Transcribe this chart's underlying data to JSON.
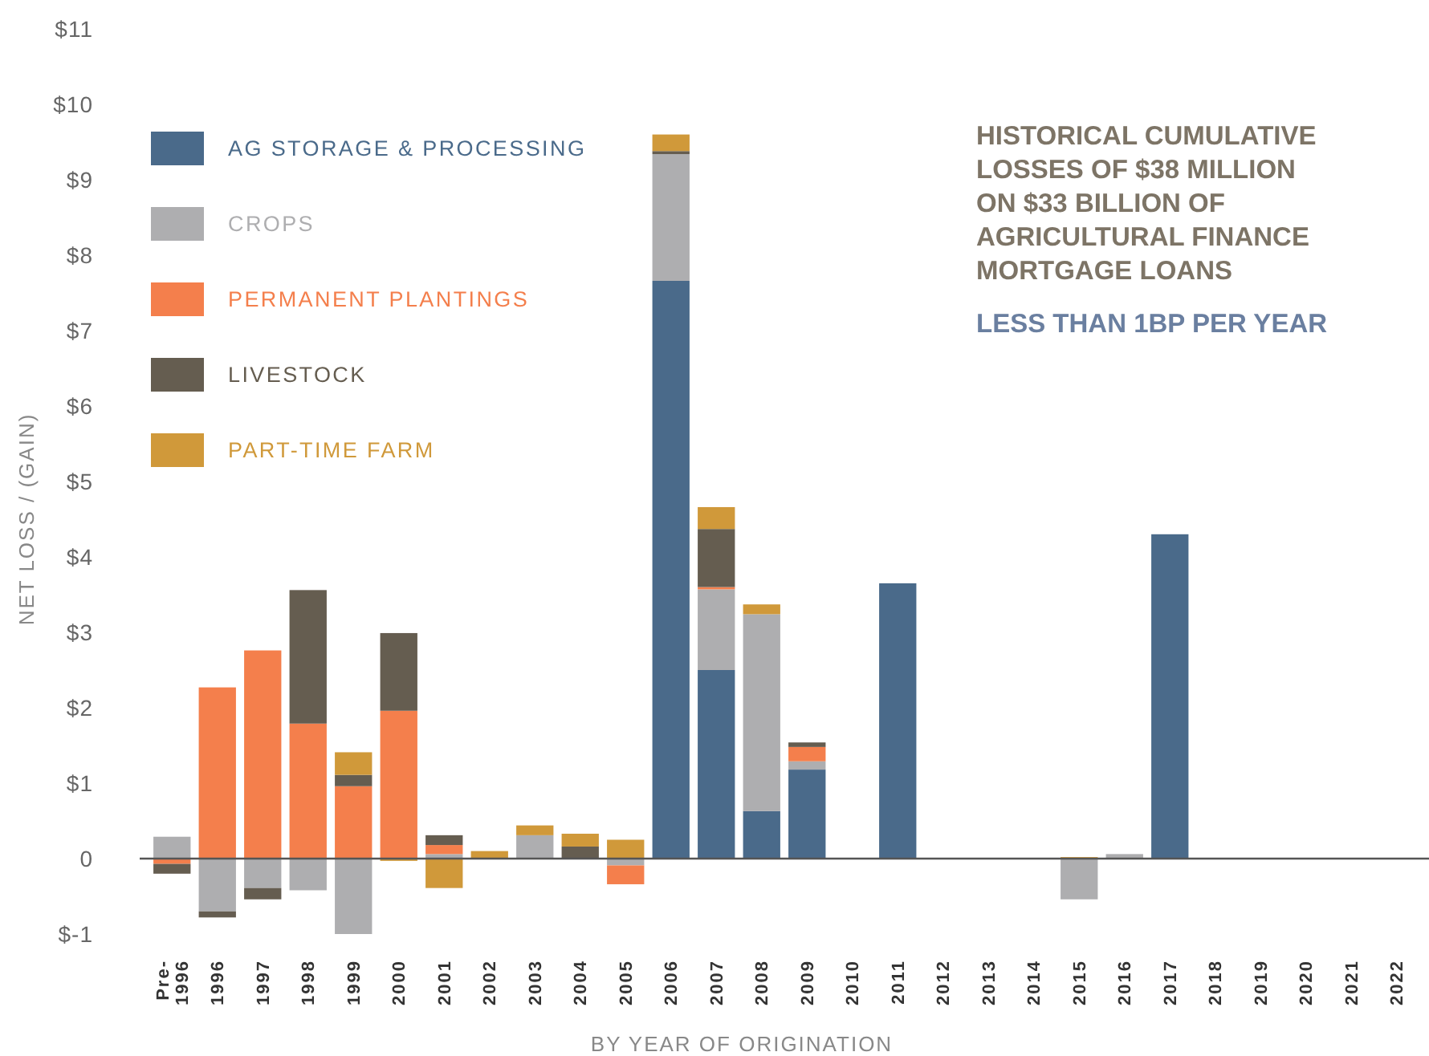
{
  "chart_data": {
    "type": "bar",
    "stacked": true,
    "legend": "top left",
    "xlabel": "BY YEAR OF ORIGINATION",
    "ylabel": "NET LOSS / (GAIN)",
    "annotations": [
      "HISTORICAL CUMULATIVE\nLOSSES OF $38 MILLION\nON $33 BILLION OF\nAGRICULTURAL FINANCE\nMORTGAGE LOANS",
      "LESS THAN 1BP PER YEAR"
    ],
    "categories": [
      "Pre-\n1996",
      "1996",
      "1997",
      "1998",
      "1999",
      "2000",
      "2001",
      "2002",
      "2003",
      "2004",
      "2005",
      "2006",
      "2007",
      "2008",
      "2009",
      "2010",
      "2011",
      "2012",
      "2013",
      "2014",
      "2015",
      "2016",
      "2017",
      "2018",
      "2019",
      "2020",
      "2021",
      "2022"
    ],
    "ylim": [
      -1,
      11
    ],
    "yticks": [
      {
        "value": -1,
        "label": "$-1"
      },
      0,
      {
        "value": 1,
        "label": "$1"
      },
      {
        "value": 2,
        "label": "$2"
      },
      {
        "value": 3,
        "label": "$3"
      },
      {
        "value": 4,
        "label": "$4"
      },
      {
        "value": 5,
        "label": "$5"
      },
      {
        "value": 6,
        "label": "$6"
      },
      {
        "value": 7,
        "label": "$7"
      },
      {
        "value": 8,
        "label": "$8"
      },
      {
        "value": 9,
        "label": "$9"
      },
      {
        "value": 10,
        "label": "$10"
      },
      {
        "value": 11,
        "label": "$11"
      }
    ],
    "series": [
      {
        "name": "AG STORAGE & PROCESSING",
        "color": "#4a6a8a",
        "values": [
          null,
          null,
          null,
          null,
          null,
          null,
          null,
          null,
          null,
          null,
          null,
          7.66,
          2.5,
          0.63,
          1.18,
          null,
          3.65,
          null,
          null,
          null,
          null,
          null,
          4.3,
          null,
          null,
          null,
          null,
          null
        ]
      },
      {
        "name": "CROPS",
        "color": "#aeaeb0",
        "values": [
          0.29,
          -0.7,
          -0.39,
          -0.42,
          -1.0,
          null,
          0.06,
          null,
          0.31,
          null,
          -0.09,
          1.68,
          1.07,
          2.61,
          0.11,
          null,
          null,
          null,
          null,
          null,
          -0.54,
          0.06,
          null,
          null,
          null,
          null,
          null,
          null
        ]
      },
      {
        "name": "PERMANENT PLANTINGS",
        "color": "#f47f4c",
        "values": [
          -0.07,
          2.27,
          2.76,
          1.79,
          0.96,
          1.96,
          0.12,
          null,
          null,
          null,
          -0.25,
          null,
          0.03,
          null,
          0.19,
          null,
          null,
          null,
          null,
          null,
          null,
          null,
          null,
          null,
          null,
          null,
          null,
          null
        ]
      },
      {
        "name": "LIVESTOCK",
        "color": "#655d50",
        "values": [
          -0.13,
          -0.08,
          -0.15,
          1.77,
          0.15,
          1.03,
          0.13,
          null,
          null,
          0.16,
          null,
          0.04,
          0.77,
          null,
          0.06,
          null,
          null,
          null,
          null,
          null,
          null,
          null,
          null,
          null,
          null,
          null,
          null,
          null
        ]
      },
      {
        "name": "PART-TIME FARM",
        "color": "#d0993a",
        "values": [
          null,
          null,
          null,
          null,
          0.3,
          -0.03,
          -0.39,
          0.1,
          0.13,
          0.17,
          0.25,
          0.22,
          0.29,
          0.13,
          null,
          null,
          null,
          null,
          null,
          null,
          0.02,
          null,
          null,
          null,
          null,
          null,
          null,
          null
        ]
      }
    ]
  }
}
